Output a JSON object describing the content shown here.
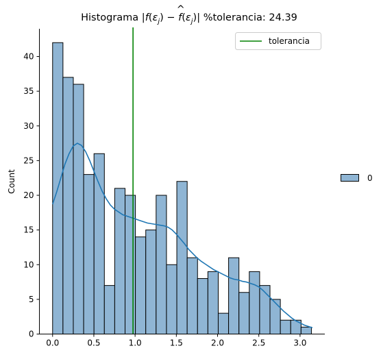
{
  "chart_data": {
    "type": "bar",
    "title": {
      "prefix": "Histograma |",
      "f": "f",
      "paren_open": "(",
      "eps": "ε",
      "sub": "j",
      "paren_close": ")",
      "minus": " − ",
      "fhat": "f",
      "hat": "^",
      "suffix": ")| %tolerancia: 24.39"
    },
    "ylabel": "Count",
    "xlabel": "",
    "xlim": [
      -0.16,
      3.3
    ],
    "ylim": [
      0,
      44
    ],
    "xticks": [
      0.0,
      0.5,
      1.0,
      1.5,
      2.0,
      2.5,
      3.0
    ],
    "xtick_labels": [
      "0.0",
      "0.5",
      "1.0",
      "1.5",
      "2.0",
      "2.5",
      "3.0"
    ],
    "yticks": [
      0,
      5,
      10,
      15,
      20,
      25,
      30,
      35,
      40
    ],
    "ytick_labels": [
      "0",
      "5",
      "10",
      "15",
      "20",
      "25",
      "30",
      "35",
      "40"
    ],
    "bin_start": 0.0,
    "bin_width": 0.1255,
    "counts": [
      42,
      37,
      36,
      23,
      26,
      7,
      21,
      20,
      14,
      15,
      20,
      10,
      22,
      11,
      8,
      9,
      3,
      11,
      6,
      9,
      7,
      5,
      2,
      2,
      1
    ],
    "kde": {
      "x": [
        0.0,
        0.05,
        0.1,
        0.15,
        0.2,
        0.25,
        0.3,
        0.35,
        0.4,
        0.45,
        0.5,
        0.55,
        0.6,
        0.65,
        0.7,
        0.75,
        0.8,
        0.85,
        0.9,
        0.95,
        1.0,
        1.05,
        1.1,
        1.15,
        1.2,
        1.25,
        1.3,
        1.35,
        1.4,
        1.45,
        1.5,
        1.55,
        1.6,
        1.65,
        1.7,
        1.75,
        1.8,
        1.85,
        1.9,
        1.95,
        2.0,
        2.05,
        2.1,
        2.15,
        2.2,
        2.25,
        2.3,
        2.35,
        2.4,
        2.45,
        2.5,
        2.55,
        2.6,
        2.65,
        2.7,
        2.75,
        2.8,
        2.85,
        2.9,
        2.95,
        3.0,
        3.05,
        3.1,
        3.15
      ],
      "y": [
        18.7,
        20.5,
        22.5,
        24.5,
        26.0,
        27.1,
        27.5,
        27.2,
        26.3,
        25.0,
        23.5,
        22.0,
        20.6,
        19.5,
        18.6,
        18.0,
        17.6,
        17.2,
        17.0,
        16.8,
        16.6,
        16.4,
        16.2,
        16.0,
        15.9,
        15.8,
        15.7,
        15.6,
        15.4,
        15.0,
        14.4,
        13.7,
        13.0,
        12.2,
        11.6,
        11.0,
        10.5,
        10.1,
        9.7,
        9.3,
        9.0,
        8.7,
        8.4,
        8.1,
        7.9,
        7.8,
        7.6,
        7.5,
        7.3,
        7.1,
        6.8,
        6.3,
        5.7,
        5.1,
        4.5,
        3.9,
        3.3,
        2.8,
        2.3,
        1.9,
        1.6,
        1.3,
        1.1,
        0.9
      ]
    },
    "vline": {
      "x": 0.975,
      "label": "tolerancia",
      "color": "#008000"
    },
    "series": [
      {
        "name": "0"
      }
    ],
    "bar_fill": "#8fb5d4",
    "bar_edge": "#000000",
    "kde_color": "#1f77b4",
    "legend_placement": "top-right",
    "side_legend_placement": "right",
    "grid": false
  }
}
